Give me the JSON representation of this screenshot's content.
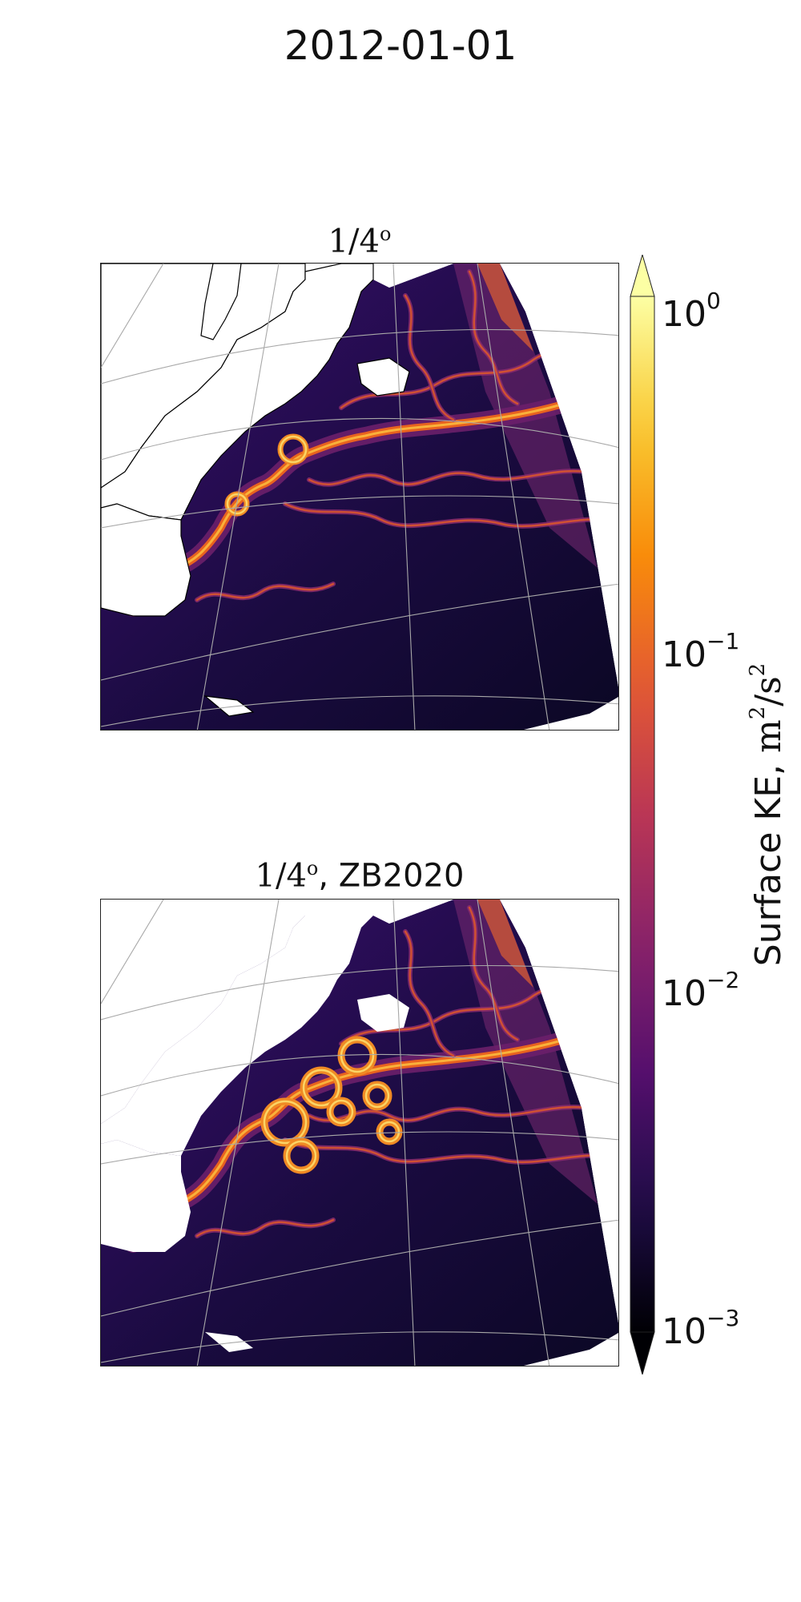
{
  "title": "2012-01-01",
  "panels": [
    {
      "title_math": "1/4",
      "title_sup": "o",
      "title_suffix": ""
    },
    {
      "title_math": "1/4",
      "title_sup": "o",
      "title_suffix": ", ZB2020"
    }
  ],
  "colorbar": {
    "label_text": "Surface KE, ",
    "label_units": "m",
    "label_units_sup": "2",
    "label_units_tail": "/s",
    "label_units_tail_sup": "2",
    "scale": "log",
    "range": [
      0.001,
      1
    ],
    "colormap": "inferno",
    "extend": "both",
    "ticks": [
      {
        "base": "10",
        "exp": "0",
        "value": 1
      },
      {
        "base": "10",
        "exp": "−1",
        "value": 0.1
      },
      {
        "base": "10",
        "exp": "−2",
        "value": 0.01
      },
      {
        "base": "10",
        "exp": "−3",
        "value": 0.001
      }
    ]
  },
  "colors": {
    "land": "#ffffff",
    "coastline": "#000000",
    "gridlines": "#a8a8a8",
    "ocean_low": "#0b0724",
    "ocean_mid": "#5e1c6e",
    "ocean_high": "#f3a128"
  }
}
